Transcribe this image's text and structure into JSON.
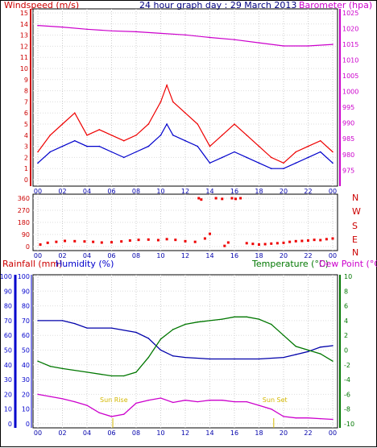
{
  "header": {
    "left_title": "Windspeed (m/s)",
    "center_title": "24 hour graph day : 29 March 2013",
    "right_title": "Barometer (hpa)"
  },
  "lower_header": {
    "rainfall_label": "Rainfall (mm)",
    "humidity_label": "Humidity (%)",
    "temperature_label": "Temperature (°C)",
    "dewpoint_label": "Dew Point (°C)"
  },
  "direction_labels": [
    "N",
    "W",
    "S",
    "E",
    "N"
  ],
  "sun_labels": {
    "rise": "Sun Rise",
    "set": "Sun Set"
  },
  "colors": {
    "gust": "#ee0000",
    "avg_wind": "#0000cc",
    "barometer": "#cc00cc",
    "direction": "#ee0000",
    "humidity": "#0000aa",
    "temperature": "#007700",
    "dewpoint": "#cc00cc",
    "sun_marker": "#d4b800"
  },
  "chart_data": [
    {
      "type": "line",
      "panel": "wind-barometer",
      "x_ticks": [
        "00",
        "02",
        "04",
        "06",
        "08",
        "10",
        "12",
        "14",
        "16",
        "18",
        "20",
        "22",
        "00"
      ],
      "xlim": [
        0,
        24
      ],
      "y_left": {
        "label": "Windspeed (m/s)",
        "lim": [
          0,
          15
        ],
        "ticks": [
          0,
          1,
          2,
          3,
          4,
          5,
          6,
          7,
          8,
          9,
          10,
          11,
          12,
          13,
          14,
          15
        ]
      },
      "y_right": {
        "label": "Barometer (hpa)",
        "lim": [
          972,
          1025
        ],
        "ticks": [
          975,
          980,
          985,
          990,
          995,
          1000,
          1005,
          1010,
          1015,
          1020,
          1025
        ]
      },
      "series": [
        {
          "name": "Windspeed (m/s)",
          "role": "gust",
          "axis": "left",
          "x": [
            0,
            1,
            2,
            3,
            4,
            5,
            6,
            7,
            8,
            9,
            10,
            10.5,
            11,
            12,
            13,
            14,
            15,
            16,
            17,
            18,
            19,
            20,
            21,
            22,
            23,
            24
          ],
          "y": [
            2.5,
            4,
            5,
            6,
            4,
            4.5,
            4,
            3.5,
            4,
            5,
            7,
            8.5,
            7,
            6,
            5,
            3,
            4,
            5,
            4,
            3,
            2,
            1.5,
            2.5,
            3,
            3.5,
            2.5
          ]
        },
        {
          "name": "avg",
          "role": "avg",
          "axis": "left",
          "x": [
            0,
            1,
            2,
            3,
            4,
            5,
            6,
            7,
            8,
            9,
            10,
            10.5,
            11,
            12,
            13,
            14,
            15,
            16,
            17,
            18,
            19,
            20,
            21,
            22,
            23,
            24
          ],
          "y": [
            1.5,
            2.5,
            3,
            3.5,
            3,
            3,
            2.5,
            2,
            2.5,
            3,
            4,
            5,
            4,
            3.5,
            3,
            1.5,
            2,
            2.5,
            2,
            1.5,
            1,
            1,
            1.5,
            2,
            2.5,
            1.5
          ]
        },
        {
          "name": "Barometer (hpa)",
          "role": "barometer",
          "axis": "right",
          "x": [
            0,
            2,
            4,
            6,
            8,
            10,
            12,
            14,
            16,
            18,
            20,
            22,
            24
          ],
          "y": [
            1021,
            1020.5,
            1019.8,
            1019.3,
            1019,
            1018.5,
            1018,
            1017.2,
            1016.5,
            1015.5,
            1014.5,
            1014.5,
            1015
          ]
        }
      ]
    },
    {
      "type": "scatter",
      "panel": "wind-direction",
      "x_ticks": [
        "00",
        "02",
        "04",
        "06",
        "08",
        "10",
        "12",
        "14",
        "16",
        "18",
        "20",
        "22",
        "00"
      ],
      "xlim": [
        0,
        24
      ],
      "y_ticks": [
        0,
        90,
        180,
        270,
        360
      ],
      "ylim": [
        0,
        360
      ],
      "series": [
        {
          "name": "direction",
          "x": [
            0.2,
            0.8,
            1.5,
            2.2,
            3,
            3.8,
            4.5,
            5.2,
            6,
            6.8,
            7.5,
            8.2,
            9,
            9.8,
            10.5,
            11.2,
            12,
            12.8,
            13.1,
            13.3,
            13.6,
            14,
            14.5,
            15,
            15.2,
            15.5,
            15.8,
            16.1,
            16.5,
            17,
            17.5,
            18,
            18.5,
            19,
            19.5,
            20,
            20.5,
            21,
            21.5,
            22,
            22.5,
            23,
            23.5,
            24
          ],
          "y": [
            15,
            28,
            35,
            42,
            40,
            38,
            35,
            30,
            32,
            38,
            45,
            50,
            52,
            48,
            55,
            50,
            40,
            35,
            360,
            350,
            60,
            95,
            360,
            355,
            5,
            30,
            360,
            355,
            360,
            25,
            20,
            15,
            18,
            22,
            25,
            28,
            35,
            40,
            42,
            45,
            50,
            48,
            55,
            60
          ]
        }
      ]
    },
    {
      "type": "line",
      "panel": "rain-humidity-temperature",
      "x_ticks": [
        "00",
        "02",
        "04",
        "06",
        "08",
        "10",
        "12",
        "14",
        "16",
        "18",
        "20",
        "22",
        "00"
      ],
      "xlim": [
        0,
        24
      ],
      "y_left": {
        "label": "Humidity (%)",
        "lim": [
          0,
          100
        ],
        "ticks": [
          0,
          10,
          20,
          30,
          40,
          50,
          60,
          70,
          80,
          90,
          100
        ]
      },
      "y_right": {
        "label": "Temperature (°C)",
        "lim": [
          -10,
          10
        ],
        "ticks": [
          -10,
          -8,
          -6,
          -4,
          -2,
          0,
          2,
          4,
          6,
          8,
          10
        ]
      },
      "series": [
        {
          "name": "Humidity (%)",
          "axis": "left",
          "x": [
            0,
            2,
            3,
            4,
            6,
            8,
            9,
            10,
            11,
            12,
            14,
            16,
            18,
            20,
            21,
            22,
            23,
            24
          ],
          "y": [
            70,
            70,
            68,
            65,
            65,
            62,
            58,
            50,
            46,
            45,
            44,
            44,
            44,
            45,
            47,
            49,
            52,
            53
          ]
        },
        {
          "name": "Temperature (°C)",
          "axis": "right",
          "x": [
            0,
            1,
            2,
            4,
            6,
            7,
            8,
            9,
            10,
            11,
            12,
            13,
            14,
            15,
            16,
            17,
            18,
            19,
            20,
            21,
            22,
            23,
            24
          ],
          "y": [
            -1.5,
            -2.2,
            -2.5,
            -3,
            -3.5,
            -3.5,
            -3,
            -1,
            1.5,
            2.8,
            3.5,
            3.8,
            4,
            4.2,
            4.5,
            4.5,
            4.2,
            3.5,
            2,
            0.5,
            0,
            -0.5,
            -1.5
          ]
        },
        {
          "name": "Dew Point (°C)",
          "axis": "right",
          "x": [
            0,
            1,
            2,
            3,
            4,
            5,
            6,
            7,
            8,
            9,
            10,
            11,
            12,
            13,
            14,
            15,
            16,
            17,
            18,
            19,
            20,
            21,
            22,
            23,
            24
          ],
          "y": [
            -6,
            -6.3,
            -6.6,
            -7,
            -7.5,
            -8.5,
            -9,
            -8.7,
            -7.2,
            -6.8,
            -6.5,
            -7.1,
            -6.8,
            -7,
            -6.8,
            -6.8,
            -7,
            -7,
            -7.5,
            -8,
            -9,
            -9.2,
            -9.2,
            -9.3,
            -9.4
          ]
        }
      ],
      "sun_rise_hour": 6.1,
      "sun_set_hour": 19.2
    }
  ]
}
